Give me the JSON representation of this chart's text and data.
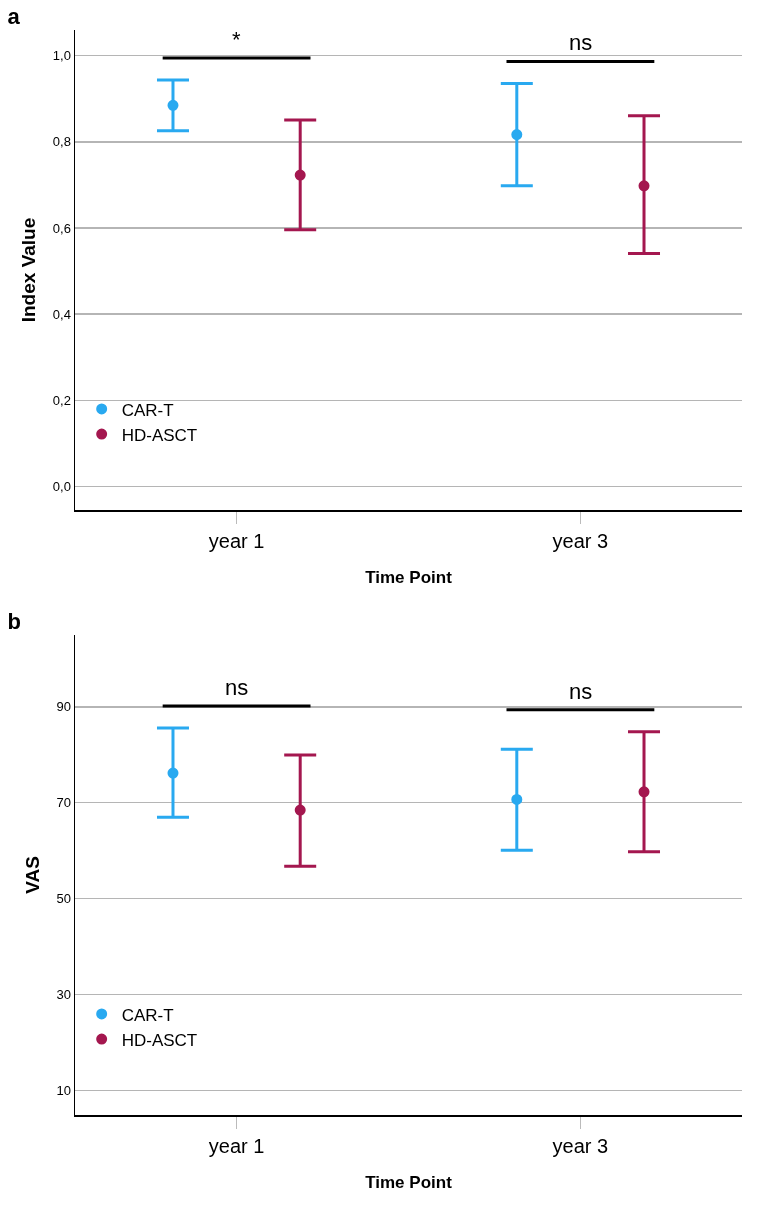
{
  "chart_data": [
    {
      "type": "scatter",
      "title": "a",
      "xlabel": "Time Point",
      "ylabel": "Index Value",
      "categories": [
        "year 1",
        "year 3"
      ],
      "series": [
        {
          "name": "CAR-T",
          "color": "#29a9f0",
          "values": [
            0.885,
            0.817
          ],
          "errors": [
            [
              0.826,
              0.944
            ],
            [
              0.698,
              0.936
            ]
          ]
        },
        {
          "name": "HD-ASCT",
          "color": "#a4174f",
          "values": [
            0.723,
            0.698
          ],
          "errors": [
            [
              0.596,
              0.851
            ],
            [
              0.541,
              0.861
            ]
          ]
        }
      ],
      "ylim": [
        -0.055,
        1.06
      ],
      "yticks": [
        {
          "value": 0,
          "label": "0,0"
        },
        {
          "value": 0.2,
          "label": "0,2"
        },
        {
          "value": 0.4,
          "label": "0,4"
        },
        {
          "value": 0.6,
          "label": "0,6"
        },
        {
          "value": 0.8,
          "label": "0,8"
        },
        {
          "value": 1,
          "label": "1,0"
        }
      ],
      "annotations": [
        "*",
        "ns"
      ],
      "grid": "y",
      "legend": "bottom left",
      "marker": "circle"
    },
    {
      "type": "scatter",
      "title": "b",
      "xlabel": "Time Point",
      "ylabel": "VAS",
      "categories": [
        "year 1",
        "year 3"
      ],
      "series": [
        {
          "name": "CAR-T",
          "color": "#29a9f0",
          "values": [
            76.2,
            70.7
          ],
          "errors": [
            [
              67.0,
              85.6
            ],
            [
              60.1,
              81.2
            ]
          ]
        },
        {
          "name": "HD-ASCT",
          "color": "#a4174f",
          "values": [
            68.5,
            72.3
          ],
          "errors": [
            [
              56.8,
              80.0
            ],
            [
              59.8,
              84.8
            ]
          ]
        }
      ],
      "ylim": [
        4.9,
        105
      ],
      "yticks": [
        10,
        30,
        50,
        70,
        90
      ],
      "annotations": [
        "ns",
        "ns"
      ],
      "grid": "y",
      "legend": "bottom left",
      "marker": "circle"
    }
  ]
}
